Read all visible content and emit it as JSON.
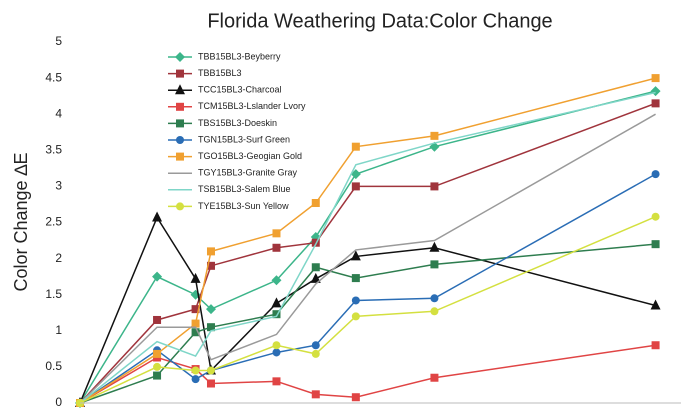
{
  "chart_data": {
    "type": "line",
    "title": "Florida Weathering Data:Color Change",
    "y_label": "Color Change ∆E",
    "x": [
      0,
      1,
      1.5,
      1.7,
      2.55,
      3.06,
      3.58,
      4.6,
      7.47
    ],
    "xlim": [
      0,
      7.8
    ],
    "ylim": [
      0,
      5
    ],
    "yticks": [
      0,
      0.5,
      1,
      1.5,
      2,
      2.5,
      3,
      3.5,
      4,
      4.5,
      5
    ],
    "grid": false,
    "legend": "upper left",
    "series": [
      {
        "name": "TBB15BL3-Beyberry",
        "color": "#3cb58a",
        "marker": "diamond",
        "values": [
          0,
          1.75,
          1.5,
          1.3,
          1.7,
          2.3,
          3.17,
          3.55,
          4.32
        ]
      },
      {
        "name": "TBB15BL3",
        "color": "#a0343c",
        "marker": "square",
        "values": [
          0,
          1.15,
          1.3,
          1.9,
          2.15,
          2.22,
          3.0,
          3.0,
          4.15
        ]
      },
      {
        "name": "TCC15BL3-Charcoal",
        "color": "#111111",
        "marker": "triangle",
        "values": [
          0,
          2.57,
          1.72,
          0.45,
          1.38,
          1.72,
          2.03,
          2.15,
          1.35
        ]
      },
      {
        "name": "TCM15BL3-Lslander Lvory",
        "color": "#e04444",
        "marker": "square",
        "values": [
          0,
          0.63,
          0.47,
          0.27,
          0.3,
          0.12,
          0.08,
          0.35,
          0.8
        ]
      },
      {
        "name": "TBS15BL3-Doeskin",
        "color": "#2e7d4f",
        "marker": "square",
        "values": [
          0,
          0.38,
          0.98,
          1.05,
          1.23,
          1.88,
          1.73,
          1.92,
          2.2
        ]
      },
      {
        "name": "TGN15BL3-Surf Green",
        "color": "#2a6db5",
        "marker": "circle",
        "values": [
          0,
          0.73,
          0.33,
          0.45,
          0.7,
          0.8,
          1.42,
          1.45,
          3.17
        ]
      },
      {
        "name": "TGO15BL3-Geogian Gold",
        "color": "#f0a030",
        "marker": "square",
        "values": [
          0,
          0.68,
          1.1,
          2.1,
          2.35,
          2.77,
          3.55,
          3.7,
          4.5
        ]
      },
      {
        "name": "TGY15BL3-Granite Gray",
        "color": "#9a9a9a",
        "marker": "none",
        "values": [
          0,
          1.05,
          1.05,
          0.6,
          0.95,
          1.65,
          2.12,
          2.25,
          4.0
        ]
      },
      {
        "name": "TSB15BL3-Salem Blue",
        "color": "#7fd6c8",
        "marker": "none",
        "values": [
          0,
          0.85,
          0.65,
          1.0,
          1.2,
          2.2,
          3.3,
          3.6,
          4.3
        ]
      },
      {
        "name": "TYE15BL3-Sun Yellow",
        "color": "#d4e040",
        "marker": "circle",
        "values": [
          0,
          0.5,
          0.45,
          0.45,
          0.8,
          0.68,
          1.2,
          1.27,
          2.58
        ]
      }
    ]
  }
}
